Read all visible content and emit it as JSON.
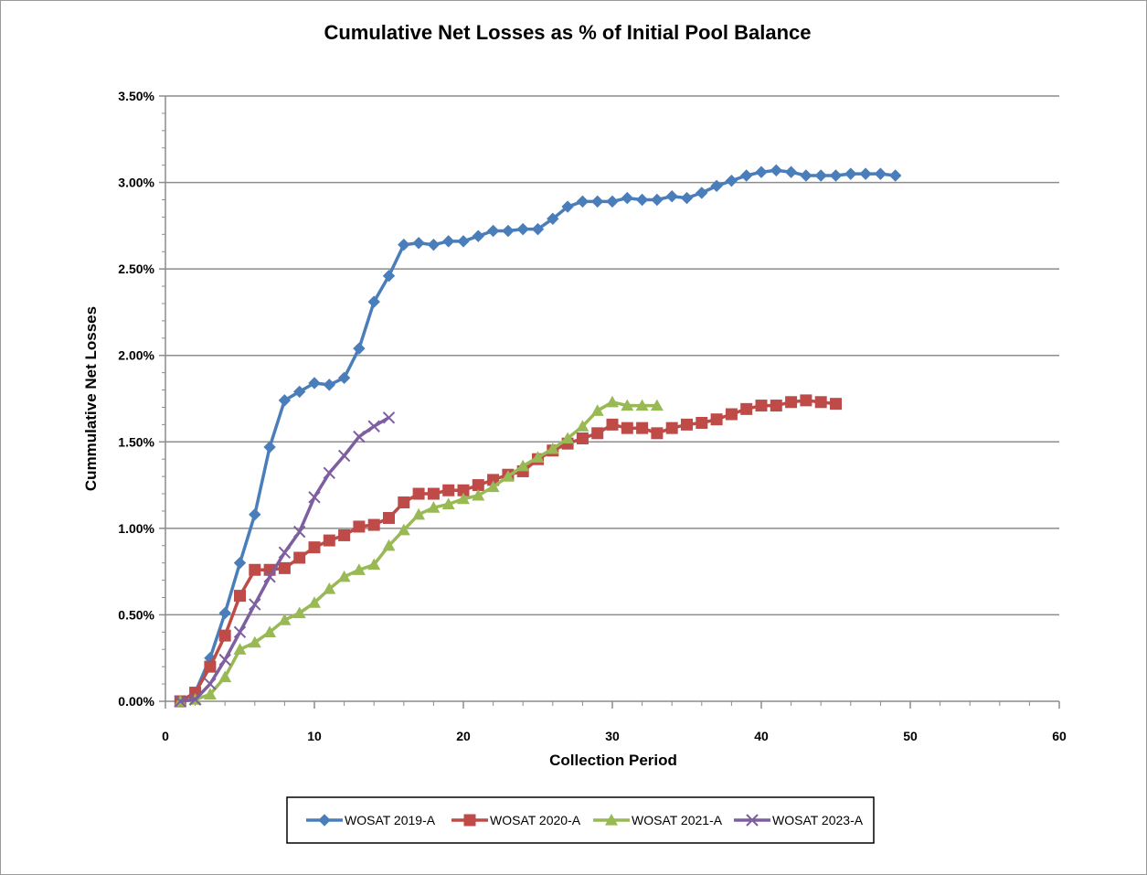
{
  "chart_data": {
    "type": "line",
    "title": "Cumulative Net Losses as % of Initial Pool Balance",
    "xlabel": "Collection Period",
    "ylabel": "Cummulative Net Losses",
    "xlim": [
      0,
      60
    ],
    "ylim": [
      0,
      3.5
    ],
    "x_ticks": [
      0,
      10,
      20,
      30,
      40,
      50,
      60
    ],
    "y_ticks": [
      0,
      0.5,
      1.0,
      1.5,
      2.0,
      2.5,
      3.0,
      3.5
    ],
    "y_tick_labels": [
      "0.00%",
      "0.50%",
      "1.00%",
      "1.50%",
      "2.00%",
      "2.50%",
      "3.00%",
      "3.50%"
    ],
    "grid": "horizontal",
    "legend_position": "bottom",
    "series": [
      {
        "name": "WOSAT 2019-A",
        "color": "#4a7ebb",
        "marker": "diamond",
        "x": [
          1,
          2,
          3,
          4,
          5,
          6,
          7,
          8,
          9,
          10,
          11,
          12,
          13,
          14,
          15,
          16,
          17,
          18,
          19,
          20,
          21,
          22,
          23,
          24,
          25,
          26,
          27,
          28,
          29,
          30,
          31,
          32,
          33,
          34,
          35,
          36,
          37,
          38,
          39,
          40,
          41,
          42,
          43,
          44,
          45,
          46,
          47,
          48,
          49
        ],
        "values": [
          0.0,
          0.05,
          0.25,
          0.51,
          0.8,
          1.08,
          1.47,
          1.74,
          1.79,
          1.84,
          1.83,
          1.87,
          2.04,
          2.31,
          2.46,
          2.64,
          2.65,
          2.64,
          2.66,
          2.66,
          2.69,
          2.72,
          2.72,
          2.73,
          2.73,
          2.79,
          2.86,
          2.89,
          2.89,
          2.89,
          2.91,
          2.9,
          2.9,
          2.92,
          2.91,
          2.94,
          2.98,
          3.01,
          3.04,
          3.06,
          3.07,
          3.06,
          3.04,
          3.04,
          3.04,
          3.05,
          3.05,
          3.05,
          3.04
        ]
      },
      {
        "name": "WOSAT 2020-A",
        "color": "#be4b48",
        "marker": "square",
        "x": [
          1,
          2,
          3,
          4,
          5,
          6,
          7,
          8,
          9,
          10,
          11,
          12,
          13,
          14,
          15,
          16,
          17,
          18,
          19,
          20,
          21,
          22,
          23,
          24,
          25,
          26,
          27,
          28,
          29,
          30,
          31,
          32,
          33,
          34,
          35,
          36,
          37,
          38,
          39,
          40,
          41,
          42,
          43,
          44,
          45
        ],
        "values": [
          0.0,
          0.05,
          0.2,
          0.38,
          0.61,
          0.76,
          0.76,
          0.77,
          0.83,
          0.89,
          0.93,
          0.96,
          1.01,
          1.02,
          1.06,
          1.15,
          1.2,
          1.2,
          1.22,
          1.22,
          1.25,
          1.28,
          1.31,
          1.33,
          1.4,
          1.45,
          1.49,
          1.52,
          1.55,
          1.6,
          1.58,
          1.58,
          1.55,
          1.58,
          1.6,
          1.61,
          1.63,
          1.66,
          1.69,
          1.71,
          1.71,
          1.73,
          1.74,
          1.73,
          1.72
        ]
      },
      {
        "name": "WOSAT 2021-A",
        "color": "#98b954",
        "marker": "triangle",
        "x": [
          1,
          2,
          3,
          4,
          5,
          6,
          7,
          8,
          9,
          10,
          11,
          12,
          13,
          14,
          15,
          16,
          17,
          18,
          19,
          20,
          21,
          22,
          23,
          24,
          25,
          26,
          27,
          28,
          29,
          30,
          31,
          32,
          33
        ],
        "values": [
          0.0,
          0.01,
          0.04,
          0.14,
          0.3,
          0.34,
          0.4,
          0.47,
          0.51,
          0.57,
          0.65,
          0.72,
          0.76,
          0.79,
          0.9,
          0.99,
          1.08,
          1.12,
          1.14,
          1.17,
          1.19,
          1.24,
          1.3,
          1.36,
          1.41,
          1.46,
          1.52,
          1.59,
          1.68,
          1.73,
          1.71,
          1.71,
          1.71
        ]
      },
      {
        "name": "WOSAT 2023-A",
        "color": "#7d5fa0",
        "marker": "x",
        "x": [
          1,
          2,
          3,
          4,
          5,
          6,
          7,
          8,
          9,
          10,
          11,
          12,
          13,
          14,
          15
        ],
        "values": [
          0.0,
          0.01,
          0.1,
          0.24,
          0.4,
          0.56,
          0.72,
          0.86,
          0.98,
          1.18,
          1.32,
          1.42,
          1.53,
          1.59,
          1.64
        ]
      }
    ]
  }
}
